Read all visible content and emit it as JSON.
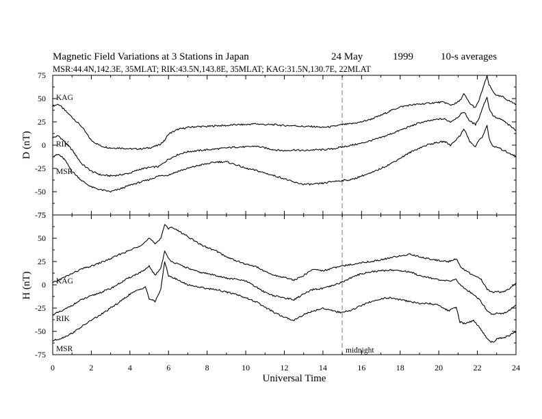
{
  "title": {
    "main": "Magnetic Field Variations at 3 Stations in Japan",
    "date": "24  May",
    "year": "1999",
    "avg": "10-s averages"
  },
  "subtitle": "MSR:44.4N,142.3E, 35MLAT;  RIK:43.5N,143.8E, 35MLAT;  KAG:31.5N,130.7E, 22MLAT",
  "colors": {
    "trace": "#000000",
    "marker": "#aaaaaa",
    "frame": "#000000"
  },
  "chart_data": [
    {
      "type": "line",
      "panel": "D",
      "ylabel": "D (nT)",
      "xlabel": "",
      "xlim": [
        0,
        24
      ],
      "ylim": [
        -75,
        75
      ],
      "yticks": [
        75,
        50,
        25,
        0,
        -25,
        -50,
        -75
      ],
      "xticks": [
        0,
        2,
        4,
        6,
        8,
        10,
        12,
        14,
        16,
        18,
        20,
        22,
        24
      ],
      "series": [
        {
          "name": "KAG",
          "x": [
            0,
            0.3,
            0.6,
            1,
            1.5,
            2,
            2.5,
            3,
            3.5,
            4,
            4.5,
            5,
            5.5,
            5.8,
            6,
            6.5,
            7,
            7.5,
            8,
            8.5,
            9,
            9.5,
            10,
            10.5,
            11,
            11.5,
            12,
            12.5,
            13,
            13.5,
            14,
            14.5,
            15,
            15.5,
            16,
            16.5,
            17,
            17.5,
            18,
            18.5,
            19,
            19.5,
            20,
            20.3,
            20.6,
            20.9,
            21.1,
            21.3,
            21.6,
            21.9,
            22.1,
            22.3,
            22.5,
            22.6,
            22.8,
            23,
            23.3,
            23.6,
            24
          ],
          "y": [
            42,
            44,
            38,
            30,
            20,
            5,
            -1,
            -3,
            -3,
            -4,
            -4,
            -3,
            0,
            5,
            12,
            17,
            19,
            20,
            20,
            21,
            21,
            22,
            22,
            23,
            22,
            22,
            21,
            21,
            20,
            20,
            19,
            20,
            22,
            23,
            25,
            28,
            32,
            37,
            41,
            43,
            44,
            45,
            46,
            46,
            43,
            45,
            48,
            55,
            45,
            40,
            49,
            62,
            74,
            65,
            58,
            53,
            52,
            48,
            44
          ]
        },
        {
          "name": "RIK",
          "x": [
            0,
            0.3,
            0.6,
            1,
            1.5,
            2,
            2.5,
            3,
            3.5,
            4,
            4.5,
            5,
            5.5,
            6,
            6.5,
            7,
            7.5,
            8,
            8.5,
            9,
            9.5,
            10,
            10.5,
            11,
            11.5,
            12,
            12.5,
            13,
            13.5,
            14,
            14.5,
            15,
            15.5,
            16,
            16.5,
            17,
            17.5,
            18,
            18.5,
            19,
            19.5,
            20,
            20.3,
            20.6,
            20.9,
            21.1,
            21.3,
            21.6,
            21.9,
            22.1,
            22.3,
            22.5,
            22.6,
            22.8,
            23,
            23.3,
            23.6,
            24
          ],
          "y": [
            8,
            10,
            4,
            -5,
            -20,
            -28,
            -32,
            -33,
            -32,
            -30,
            -26,
            -24,
            -23,
            -15,
            -10,
            -7,
            -6,
            -5,
            -4,
            -3,
            -2,
            -2,
            -1,
            -3,
            -5,
            -6,
            -5,
            -6,
            -5,
            -5,
            -4,
            -2,
            0,
            2,
            5,
            8,
            12,
            16,
            20,
            24,
            26,
            28,
            28,
            25,
            29,
            32,
            36,
            26,
            22,
            30,
            42,
            52,
            40,
            32,
            29,
            27,
            22,
            16
          ]
        },
        {
          "name": "MSR",
          "x": [
            0,
            0.3,
            0.6,
            1,
            1.5,
            2,
            2.5,
            3,
            3.5,
            4,
            4.5,
            5,
            5.5,
            6,
            6.5,
            7,
            7.5,
            8,
            8.5,
            9,
            9.5,
            10,
            10.5,
            11,
            11.5,
            12,
            12.5,
            13,
            13.5,
            14,
            14.5,
            15,
            15.5,
            16,
            16.5,
            17,
            17.5,
            18,
            18.5,
            19,
            19.5,
            20,
            20.3,
            20.6,
            20.9,
            21.1,
            21.3,
            21.6,
            21.9,
            22.1,
            22.3,
            22.5,
            22.6,
            22.8,
            23,
            23.3,
            23.6,
            24
          ],
          "y": [
            -12,
            -10,
            -15,
            -28,
            -38,
            -45,
            -48,
            -50,
            -47,
            -43,
            -40,
            -37,
            -33,
            -32,
            -28,
            -25,
            -22,
            -20,
            -18,
            -18,
            -21,
            -25,
            -27,
            -30,
            -33,
            -36,
            -40,
            -42,
            -42,
            -41,
            -39,
            -38,
            -37,
            -33,
            -30,
            -25,
            -20,
            -14,
            -8,
            -3,
            1,
            3,
            4,
            0,
            6,
            10,
            18,
            4,
            -2,
            6,
            10,
            22,
            8,
            -2,
            -2,
            -5,
            -8,
            -12
          ]
        }
      ],
      "annotations": []
    },
    {
      "type": "line",
      "panel": "H",
      "ylabel": "H (nT)",
      "xlabel": "Universal Time",
      "xlim": [
        0,
        24
      ],
      "ylim": [
        -75,
        75
      ],
      "yticks": [
        75,
        50,
        25,
        0,
        -25,
        -50,
        -75
      ],
      "xticks": [
        0,
        2,
        4,
        6,
        8,
        10,
        12,
        14,
        16,
        18,
        20,
        22,
        24
      ],
      "series": [
        {
          "name": "KAG",
          "x": [
            0,
            0.5,
            1,
            1.5,
            2,
            2.5,
            3,
            3.5,
            4,
            4.5,
            4.8,
            5,
            5.3,
            5.6,
            5.8,
            6,
            6.2,
            6.5,
            7,
            7.5,
            8,
            8.5,
            9,
            9.5,
            10,
            10.5,
            11,
            11.5,
            12,
            12.5,
            13,
            13.5,
            14,
            14.5,
            15,
            15.5,
            16,
            16.5,
            17,
            17.5,
            18,
            18.5,
            19,
            19.5,
            20,
            20.5,
            20.9,
            21.1,
            21.4,
            21.8,
            22.2,
            22.5,
            22.8,
            23,
            23.3,
            23.6,
            24
          ],
          "y": [
            2,
            7,
            12,
            17,
            20,
            24,
            28,
            33,
            37,
            42,
            46,
            50,
            44,
            50,
            65,
            60,
            62,
            58,
            52,
            45,
            40,
            36,
            30,
            26,
            22,
            20,
            14,
            10,
            8,
            5,
            10,
            17,
            15,
            18,
            20,
            22,
            24,
            25,
            27,
            29,
            31,
            33,
            30,
            28,
            26,
            25,
            28,
            20,
            15,
            10,
            6,
            -5,
            -8,
            -7,
            -8,
            -5,
            2
          ]
        },
        {
          "name": "RIK",
          "x": [
            0,
            0.5,
            1,
            1.5,
            2,
            2.5,
            3,
            3.5,
            4,
            4.5,
            4.8,
            5,
            5.3,
            5.6,
            5.8,
            6,
            6.2,
            6.5,
            7,
            7.5,
            8,
            8.5,
            9,
            9.5,
            10,
            10.5,
            11,
            11.5,
            12,
            12.5,
            13,
            13.5,
            14,
            14.5,
            15,
            15.5,
            16,
            16.5,
            17,
            17.5,
            18,
            18.5,
            19,
            19.5,
            20,
            20.5,
            20.9,
            21.1,
            21.4,
            21.8,
            22.2,
            22.5,
            22.8,
            23,
            23.3,
            23.6,
            24
          ],
          "y": [
            -32,
            -28,
            -22,
            -16,
            -12,
            -8,
            -4,
            2,
            8,
            13,
            16,
            20,
            10,
            18,
            36,
            28,
            25,
            22,
            18,
            14,
            12,
            10,
            7,
            6,
            4,
            -2,
            -8,
            -12,
            -14,
            -16,
            -10,
            -5,
            -4,
            -1,
            3,
            8,
            12,
            14,
            15,
            16,
            15,
            14,
            10,
            8,
            5,
            4,
            6,
            0,
            -5,
            -10,
            -18,
            -28,
            -32,
            -30,
            -31,
            -28,
            -22
          ]
        },
        {
          "name": "MSR",
          "x": [
            0,
            0.5,
            1,
            1.5,
            2,
            2.5,
            3,
            3.5,
            4,
            4.5,
            4.8,
            5,
            5.3,
            5.6,
            5.8,
            6,
            6.2,
            6.5,
            7,
            7.5,
            8,
            8.5,
            9,
            9.5,
            10,
            10.5,
            11,
            11.5,
            12,
            12.5,
            13,
            13.5,
            14,
            14.5,
            15,
            15.5,
            16,
            16.5,
            17,
            17.5,
            18,
            18.5,
            19,
            19.5,
            20,
            20.5,
            20.9,
            21.1,
            21.4,
            21.8,
            22.2,
            22.5,
            22.8,
            23,
            23.3,
            23.6,
            24
          ],
          "y": [
            -60,
            -57,
            -52,
            -45,
            -38,
            -32,
            -25,
            -18,
            -10,
            -5,
            -2,
            -15,
            -18,
            -5,
            25,
            10,
            8,
            5,
            0,
            -2,
            -4,
            -5,
            -8,
            -10,
            -14,
            -18,
            -24,
            -30,
            -35,
            -38,
            -32,
            -28,
            -25,
            -28,
            -30,
            -27,
            -22,
            -18,
            -15,
            -14,
            -16,
            -18,
            -20,
            -20,
            -22,
            -28,
            -24,
            -40,
            -42,
            -38,
            -48,
            -58,
            -62,
            -58,
            -57,
            -55,
            -50
          ]
        }
      ],
      "annotations": [
        "midnight"
      ]
    }
  ],
  "marker": {
    "x": 15
  }
}
